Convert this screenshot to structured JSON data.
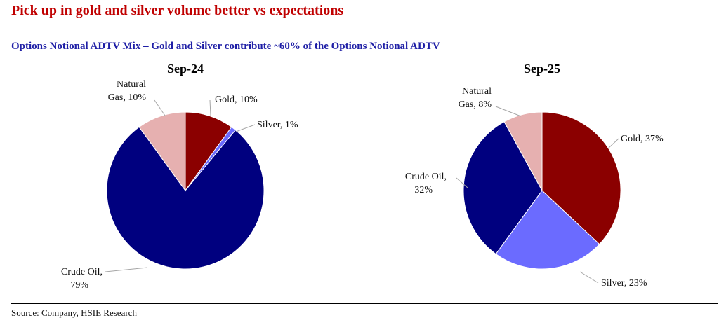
{
  "page": {
    "headline": "Pick up in gold and silver volume better vs expectations",
    "subtitle": "Options Notional ADTV Mix – Gold and Silver contribute ~60% of the Options Notional ADTV",
    "source": "Source: Company, HSIE Research"
  },
  "colors": {
    "Gold": "#8b0000",
    "Silver": "#6b6bff",
    "Crude Oil": "#00007f",
    "Natural Gas": "#e6b0b0",
    "headline": "#c00000",
    "subtitle": "#1f1fa6"
  },
  "chart_data": [
    {
      "type": "pie",
      "title": "Sep-24",
      "categories": [
        "Gold",
        "Silver",
        "Crude Oil",
        "Natural Gas"
      ],
      "values": [
        10,
        1,
        79,
        10
      ],
      "labels": [
        "Gold, 10%",
        "Silver, 1%",
        [
          "Crude Oil,",
          "79%"
        ],
        [
          "Natural",
          "Gas, 10%"
        ]
      ]
    },
    {
      "type": "pie",
      "title": "Sep-25",
      "categories": [
        "Gold",
        "Silver",
        "Crude Oil",
        "Natural Gas"
      ],
      "values": [
        37,
        23,
        32,
        8
      ],
      "labels": [
        "Gold, 37%",
        "Silver, 23%",
        [
          "Crude Oil,",
          "32%"
        ],
        [
          "Natural",
          "Gas, 8%"
        ]
      ]
    }
  ]
}
